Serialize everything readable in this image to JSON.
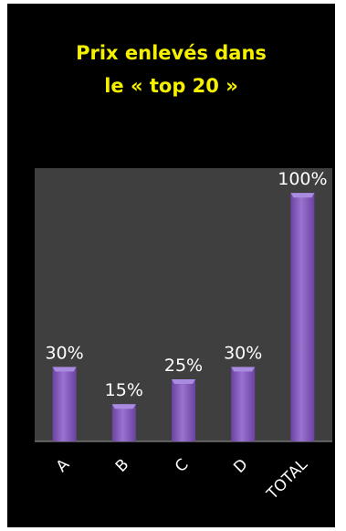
{
  "title": {
    "line1": "Prix enlevés dans",
    "line2": "le « top 20 »"
  },
  "colors": {
    "background": "#000000",
    "plot_area": "#3f3f3f",
    "title": "#f4f000",
    "bar": "#8a5fc0",
    "bar_top": "#a98be0",
    "text": "#ffffff"
  },
  "chart_data": {
    "type": "bar",
    "categories": [
      "A",
      "B",
      "C",
      "D",
      "TOTAL"
    ],
    "values": [
      30,
      15,
      25,
      30,
      100
    ],
    "data_labels": [
      "30%",
      "15%",
      "25%",
      "30%",
      "100%"
    ],
    "unit": "%",
    "ylim": [
      0,
      110
    ],
    "grid": false,
    "legend": "none",
    "xlabel": "",
    "ylabel": ""
  }
}
